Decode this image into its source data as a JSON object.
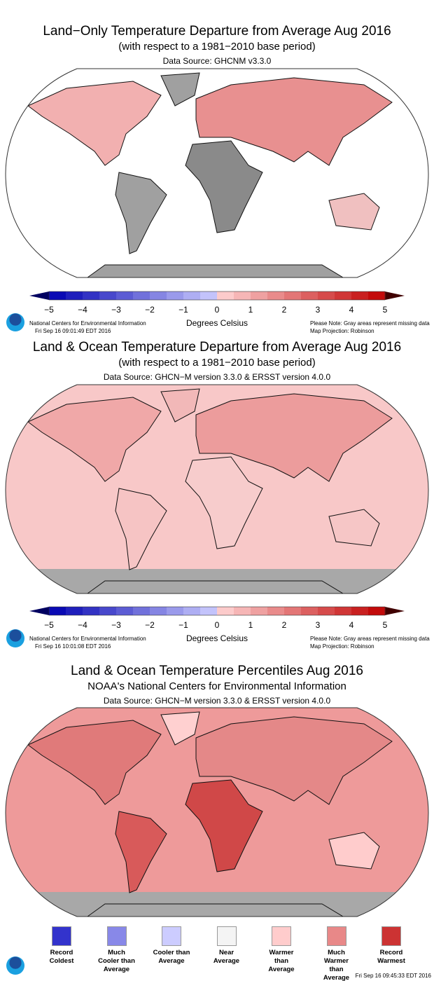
{
  "panels": [
    {
      "title": "Land−Only Temperature Departure from Average Aug 2016",
      "subtitle": "(with respect to a 1981−2010 base period)",
      "source": "Data Source: GHCNM v3.3.0",
      "org": "National Centers for Environmental Information",
      "timestamp": "Fri Sep 16 09:01:49 EDT 2016",
      "note": "Please Note: Gray areas represent missing data",
      "projection": "Map Projection: Robinson",
      "unit": "Degrees Celsius"
    },
    {
      "title": "Land & Ocean Temperature Departure from Average Aug 2016",
      "subtitle": "(with respect to a 1981−2010 base period)",
      "source": "Data Source: GHCN−M version 3.3.0 & ERSST version 4.0.0",
      "org": "National Centers for Environmental Information",
      "timestamp": "Fri Sep 16 10:01:08 EDT 2016",
      "note": "Please Note: Gray areas represent missing data",
      "projection": "Map Projection: Robinson",
      "unit": "Degrees Celsius"
    },
    {
      "title": "Land & Ocean Temperature Percentiles Aug 2016",
      "subtitle": "NOAA's National Centers for Environmental Information",
      "source": "Data Source: GHCN−M version 3.3.0 & ERSST version 4.0.0",
      "timestamp": "Fri Sep 16 09:45:33 EDT 2016"
    }
  ],
  "colorbar": {
    "ticks": [
      "−5",
      "−4",
      "−3",
      "−2",
      "−1",
      "0",
      "1",
      "2",
      "3",
      "4",
      "5"
    ],
    "range": [
      -5,
      5
    ],
    "step": 0.5,
    "cold_color": "#0000b0",
    "warm_color": "#c00000"
  },
  "legend": [
    {
      "label": "Record Coldest",
      "color": "#3333cc"
    },
    {
      "label": "Much Cooler than Average",
      "color": "#8888e8"
    },
    {
      "label": "Cooler than Average",
      "color": "#ccccff"
    },
    {
      "label": "Near Average",
      "color": "#f4f4f4"
    },
    {
      "label": "Warmer than Average",
      "color": "#ffcccc"
    },
    {
      "label": "Much Warmer than Average",
      "color": "#e88888"
    },
    {
      "label": "Record Warmest",
      "color": "#cc3333"
    }
  ],
  "missing_color": "#a0a0a0"
}
